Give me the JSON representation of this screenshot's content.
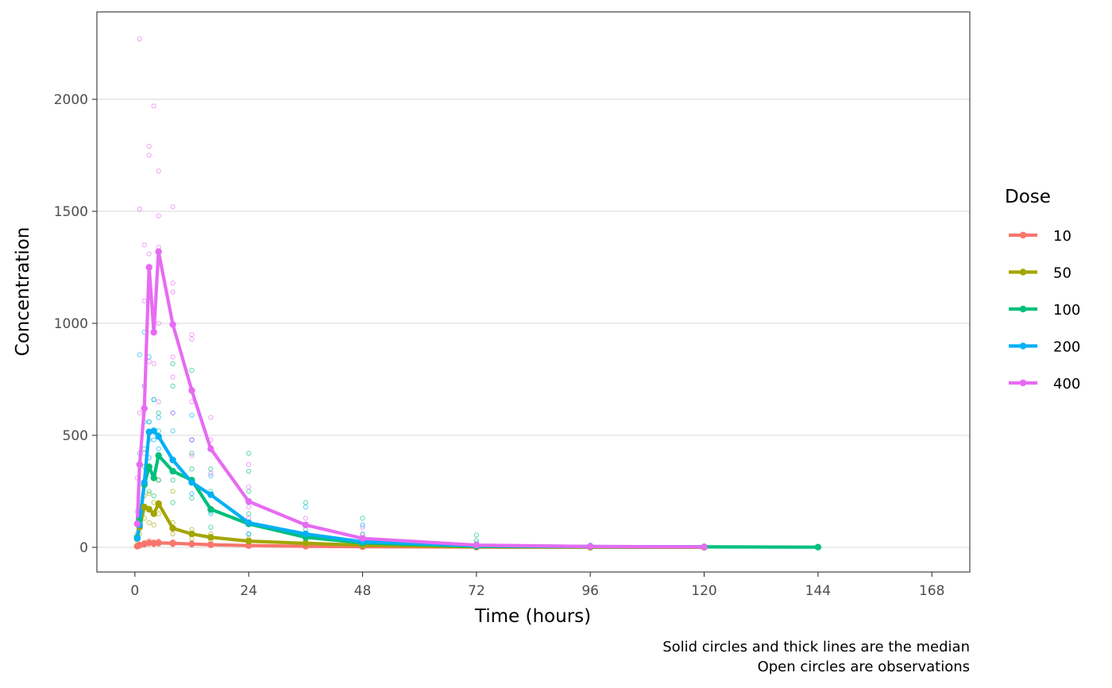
{
  "chart_data": {
    "type": "line",
    "xlabel": "Time (hours)",
    "ylabel": "Concentration",
    "xlim": [
      -8,
      176
    ],
    "ylim": [
      -110,
      2390
    ],
    "x_ticks": [
      0,
      24,
      48,
      72,
      96,
      120,
      144,
      168
    ],
    "y_ticks": [
      0,
      500,
      1000,
      1500,
      2000
    ],
    "grid": "horizontal major lines",
    "legend": {
      "title": "Dose",
      "position": "right"
    },
    "caption": [
      "Solid circles and thick lines are the median",
      "Open circles are observations"
    ],
    "series": [
      {
        "name": "10",
        "color": "#F8766D",
        "median": [
          [
            0.5,
            5
          ],
          [
            1,
            10
          ],
          [
            2,
            15
          ],
          [
            3,
            20
          ],
          [
            4,
            18
          ],
          [
            5,
            20
          ],
          [
            8,
            18
          ],
          [
            12,
            15
          ],
          [
            16,
            12
          ],
          [
            24,
            8
          ],
          [
            36,
            5
          ],
          [
            48,
            3
          ],
          [
            72,
            1
          ],
          [
            96,
            0.5
          ],
          [
            120,
            0.3
          ]
        ],
        "observations": [
          [
            0.5,
            3
          ],
          [
            0.5,
            8
          ],
          [
            1,
            6
          ],
          [
            1,
            14
          ],
          [
            2,
            10
          ],
          [
            2,
            22
          ],
          [
            3,
            15
          ],
          [
            3,
            30
          ],
          [
            4,
            12
          ],
          [
            4,
            25
          ],
          [
            5,
            14
          ],
          [
            5,
            28
          ],
          [
            8,
            12
          ],
          [
            8,
            26
          ],
          [
            12,
            10
          ],
          [
            12,
            20
          ],
          [
            16,
            8
          ],
          [
            16,
            15
          ],
          [
            24,
            5
          ],
          [
            24,
            11
          ],
          [
            36,
            3
          ],
          [
            36,
            7
          ],
          [
            48,
            2
          ],
          [
            48,
            4
          ]
        ]
      },
      {
        "name": "50",
        "color": "#A3A500",
        "median": [
          [
            0.5,
            40
          ],
          [
            1,
            90
          ],
          [
            2,
            180
          ],
          [
            3,
            170
          ],
          [
            4,
            150
          ],
          [
            5,
            195
          ],
          [
            8,
            85
          ],
          [
            12,
            60
          ],
          [
            16,
            45
          ],
          [
            24,
            28
          ],
          [
            36,
            18
          ],
          [
            48,
            10
          ],
          [
            72,
            3
          ],
          [
            96,
            1
          ],
          [
            120,
            0.5
          ]
        ],
        "observations": [
          [
            0.5,
            30
          ],
          [
            1,
            60
          ],
          [
            1,
            120
          ],
          [
            2,
            130
          ],
          [
            2,
            230
          ],
          [
            3,
            110
          ],
          [
            3,
            240
          ],
          [
            4,
            100
          ],
          [
            4,
            200
          ],
          [
            5,
            150
          ],
          [
            5,
            300
          ],
          [
            8,
            60
          ],
          [
            8,
            110
          ],
          [
            8,
            250
          ],
          [
            12,
            40
          ],
          [
            12,
            80
          ],
          [
            16,
            30
          ],
          [
            16,
            60
          ],
          [
            24,
            18
          ],
          [
            24,
            40
          ],
          [
            36,
            10
          ],
          [
            36,
            25
          ],
          [
            48,
            6
          ],
          [
            48,
            15
          ]
        ]
      },
      {
        "name": "100",
        "color": "#00BF7D",
        "median": [
          [
            0.5,
            45
          ],
          [
            1,
            120
          ],
          [
            2,
            280
          ],
          [
            3,
            360
          ],
          [
            4,
            310
          ],
          [
            5,
            410
          ],
          [
            8,
            340
          ],
          [
            12,
            300
          ],
          [
            16,
            170
          ],
          [
            24,
            105
          ],
          [
            36,
            45
          ],
          [
            48,
            20
          ],
          [
            72,
            5
          ],
          [
            96,
            3
          ],
          [
            120,
            2
          ],
          [
            144,
            1
          ]
        ],
        "observations": [
          [
            1,
            200
          ],
          [
            2,
            360
          ],
          [
            2,
            440
          ],
          [
            3,
            250
          ],
          [
            3,
            480
          ],
          [
            3,
            560
          ],
          [
            4,
            230
          ],
          [
            4,
            520
          ],
          [
            4,
            660
          ],
          [
            5,
            300
          ],
          [
            5,
            520
          ],
          [
            5,
            600
          ],
          [
            8,
            200
          ],
          [
            8,
            300
          ],
          [
            8,
            720
          ],
          [
            8,
            820
          ],
          [
            12,
            220
          ],
          [
            12,
            350
          ],
          [
            12,
            420
          ],
          [
            12,
            480
          ],
          [
            12,
            790
          ],
          [
            16,
            90
          ],
          [
            16,
            160
          ],
          [
            16,
            250
          ],
          [
            16,
            350
          ],
          [
            24,
            60
          ],
          [
            24,
            150
          ],
          [
            24,
            250
          ],
          [
            24,
            340
          ],
          [
            24,
            420
          ],
          [
            36,
            30
          ],
          [
            36,
            80
          ],
          [
            36,
            200
          ],
          [
            48,
            10
          ],
          [
            48,
            60
          ],
          [
            48,
            130
          ],
          [
            72,
            5
          ],
          [
            72,
            30
          ],
          [
            72,
            55
          ],
          [
            96,
            3
          ],
          [
            120,
            2
          ]
        ]
      },
      {
        "name": "200",
        "color": "#00B0F6",
        "median": [
          [
            0.5,
            40
          ],
          [
            1,
            100
          ],
          [
            2,
            290
          ],
          [
            3,
            515
          ],
          [
            4,
            520
          ],
          [
            5,
            495
          ],
          [
            8,
            390
          ],
          [
            12,
            290
          ],
          [
            16,
            235
          ],
          [
            24,
            110
          ],
          [
            36,
            60
          ],
          [
            48,
            25
          ],
          [
            72,
            8
          ],
          [
            96,
            4
          ],
          [
            120,
            2
          ]
        ],
        "observations": [
          [
            1,
            420
          ],
          [
            1,
            860
          ],
          [
            2,
            560
          ],
          [
            2,
            720
          ],
          [
            2,
            960
          ],
          [
            3,
            400
          ],
          [
            3,
            560
          ],
          [
            3,
            850
          ],
          [
            4,
            480
          ],
          [
            4,
            660
          ],
          [
            5,
            440
          ],
          [
            5,
            580
          ],
          [
            8,
            520
          ],
          [
            8,
            600
          ],
          [
            12,
            240
          ],
          [
            12,
            480
          ],
          [
            12,
            590
          ],
          [
            16,
            150
          ],
          [
            16,
            320
          ],
          [
            24,
            60
          ],
          [
            24,
            200
          ],
          [
            36,
            40
          ],
          [
            36,
            180
          ],
          [
            48,
            15
          ],
          [
            48,
            100
          ],
          [
            72,
            5
          ],
          [
            72,
            20
          ],
          [
            96,
            2
          ],
          [
            96,
            10
          ],
          [
            120,
            1
          ],
          [
            120,
            6
          ]
        ]
      },
      {
        "name": "400",
        "color": "#E76BF3",
        "median": [
          [
            0.5,
            105
          ],
          [
            1,
            370
          ],
          [
            2,
            620
          ],
          [
            3,
            1250
          ],
          [
            4,
            960
          ],
          [
            5,
            1320
          ],
          [
            8,
            995
          ],
          [
            12,
            700
          ],
          [
            16,
            440
          ],
          [
            24,
            205
          ],
          [
            36,
            100
          ],
          [
            48,
            40
          ],
          [
            72,
            10
          ],
          [
            96,
            4
          ],
          [
            120,
            2
          ]
        ],
        "observations": [
          [
            0.5,
            60
          ],
          [
            0.5,
            160
          ],
          [
            0.5,
            310
          ],
          [
            1,
            230
          ],
          [
            1,
            600
          ],
          [
            1,
            1510
          ],
          [
            1,
            2270
          ],
          [
            2,
            420
          ],
          [
            2,
            720
          ],
          [
            2,
            1100
          ],
          [
            2,
            1350
          ],
          [
            3,
            830
          ],
          [
            3,
            1310
          ],
          [
            3,
            1750
          ],
          [
            3,
            1790
          ],
          [
            4,
            820
          ],
          [
            4,
            1050
          ],
          [
            4,
            1970
          ],
          [
            5,
            650
          ],
          [
            5,
            1000
          ],
          [
            5,
            1340
          ],
          [
            5,
            1480
          ],
          [
            5,
            1680
          ],
          [
            8,
            600
          ],
          [
            8,
            760
          ],
          [
            8,
            850
          ],
          [
            8,
            1140
          ],
          [
            8,
            1180
          ],
          [
            8,
            1520
          ],
          [
            12,
            410
          ],
          [
            12,
            480
          ],
          [
            12,
            650
          ],
          [
            12,
            930
          ],
          [
            12,
            950
          ],
          [
            16,
            330
          ],
          [
            16,
            480
          ],
          [
            16,
            580
          ],
          [
            24,
            130
          ],
          [
            24,
            180
          ],
          [
            24,
            270
          ],
          [
            24,
            370
          ],
          [
            36,
            60
          ],
          [
            36,
            130
          ],
          [
            48,
            20
          ],
          [
            48,
            55
          ],
          [
            48,
            90
          ],
          [
            72,
            5
          ],
          [
            72,
            15
          ],
          [
            96,
            2
          ],
          [
            96,
            6
          ],
          [
            120,
            1
          ],
          [
            120,
            4
          ]
        ]
      }
    ]
  }
}
